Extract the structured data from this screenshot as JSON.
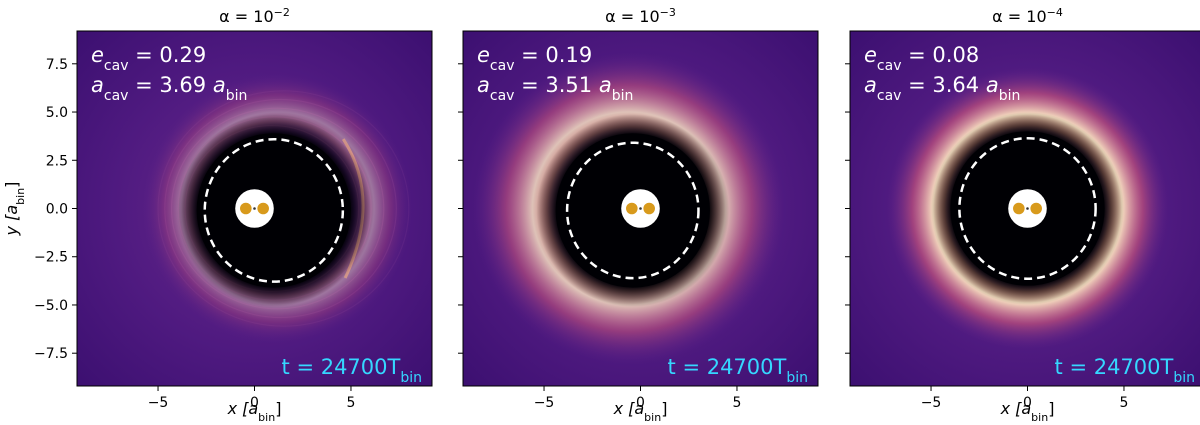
{
  "chart_data": [
    {
      "type": "heatmap",
      "title_base": "α = 10",
      "title_exp": "−2",
      "xlabel": {
        "var": "x",
        "unit": "a",
        "unit_sub": "bin"
      },
      "ylabel": {
        "var": "y",
        "unit": "a",
        "unit_sub": "bin"
      },
      "xlim": [
        -9.2,
        9.2
      ],
      "ylim": [
        -9.2,
        9.2
      ],
      "xticks": [
        -5,
        0,
        5
      ],
      "yticks": [
        7.5,
        5.0,
        2.5,
        0.0,
        -2.5,
        -5.0,
        -7.5
      ],
      "show_ytick_labels": true,
      "e_cav_label": "e",
      "e_cav_sub": "cav",
      "e_cav": "0.29",
      "a_cav_label": "a",
      "a_cav_sub": "cav",
      "a_cav": "3.69",
      "a_unit": "a",
      "a_unit_sub": "bin",
      "time_label": "t = 24700T",
      "time_sub": "bin",
      "cavity": {
        "a": 3.69,
        "e": 0.29,
        "center_x": 1.0,
        "center_y": -0.1
      },
      "ring_brightness": 0.45,
      "ring_radius": 5.0,
      "ring_offset_x": 1.2,
      "ring_width": 0.9
    },
    {
      "type": "heatmap",
      "title_base": "α = 10",
      "title_exp": "−3",
      "xlabel": {
        "var": "x",
        "unit": "a",
        "unit_sub": "bin"
      },
      "ylabel": {
        "var": "y",
        "unit": "a",
        "unit_sub": "bin"
      },
      "xlim": [
        -9.2,
        9.2
      ],
      "ylim": [
        -9.2,
        9.2
      ],
      "xticks": [
        -5,
        0,
        5
      ],
      "yticks": [
        7.5,
        5.0,
        2.5,
        0.0,
        -2.5,
        -5.0,
        -7.5
      ],
      "show_ytick_labels": false,
      "e_cav_label": "e",
      "e_cav_sub": "cav",
      "e_cav": "0.19",
      "a_cav_label": "a",
      "a_cav_sub": "cav",
      "a_cav": "3.51",
      "a_unit": "a",
      "a_unit_sub": "bin",
      "time_label": "t = 24700T",
      "time_sub": "bin",
      "cavity": {
        "a": 3.51,
        "e": 0.19,
        "center_x": -0.4,
        "center_y": -0.1
      },
      "ring_brightness": 0.85,
      "ring_radius": 5.0,
      "ring_offset_x": -0.6,
      "ring_width": 1.4
    },
    {
      "type": "heatmap",
      "title_base": "α = 10",
      "title_exp": "−4",
      "xlabel": {
        "var": "x",
        "unit": "a",
        "unit_sub": "bin"
      },
      "ylabel": {
        "var": "y",
        "unit": "a",
        "unit_sub": "bin"
      },
      "xlim": [
        -9.2,
        9.2
      ],
      "ylim": [
        -9.2,
        9.2
      ],
      "xticks": [
        -5,
        0,
        5
      ],
      "yticks": [
        7.5,
        5.0,
        2.5,
        0.0,
        -2.5,
        -5.0,
        -7.5
      ],
      "show_ytick_labels": false,
      "e_cav_label": "e",
      "e_cav_sub": "cav",
      "e_cav": "0.08",
      "a_cav_label": "a",
      "a_cav_sub": "cav",
      "a_cav": "3.64",
      "a_unit": "a",
      "a_unit_sub": "bin",
      "time_label": "t = 24700T",
      "time_sub": "bin",
      "cavity": {
        "a": 3.64,
        "e": 0.08,
        "center_x": 0.0,
        "center_y": 0.0
      },
      "ring_brightness": 1.0,
      "ring_radius": 4.9,
      "ring_offset_x": 0.0,
      "ring_width": 1.1
    }
  ],
  "colors": {
    "background_low": "#3b0f70",
    "background_mid": "#6a2a8c",
    "cavity": "#000004",
    "ring_glow": "#fcb27a",
    "ring_core": "#fee9c4",
    "stars": "#d89a1c",
    "annotation": "#ffffff",
    "time": "#35d7ff"
  }
}
